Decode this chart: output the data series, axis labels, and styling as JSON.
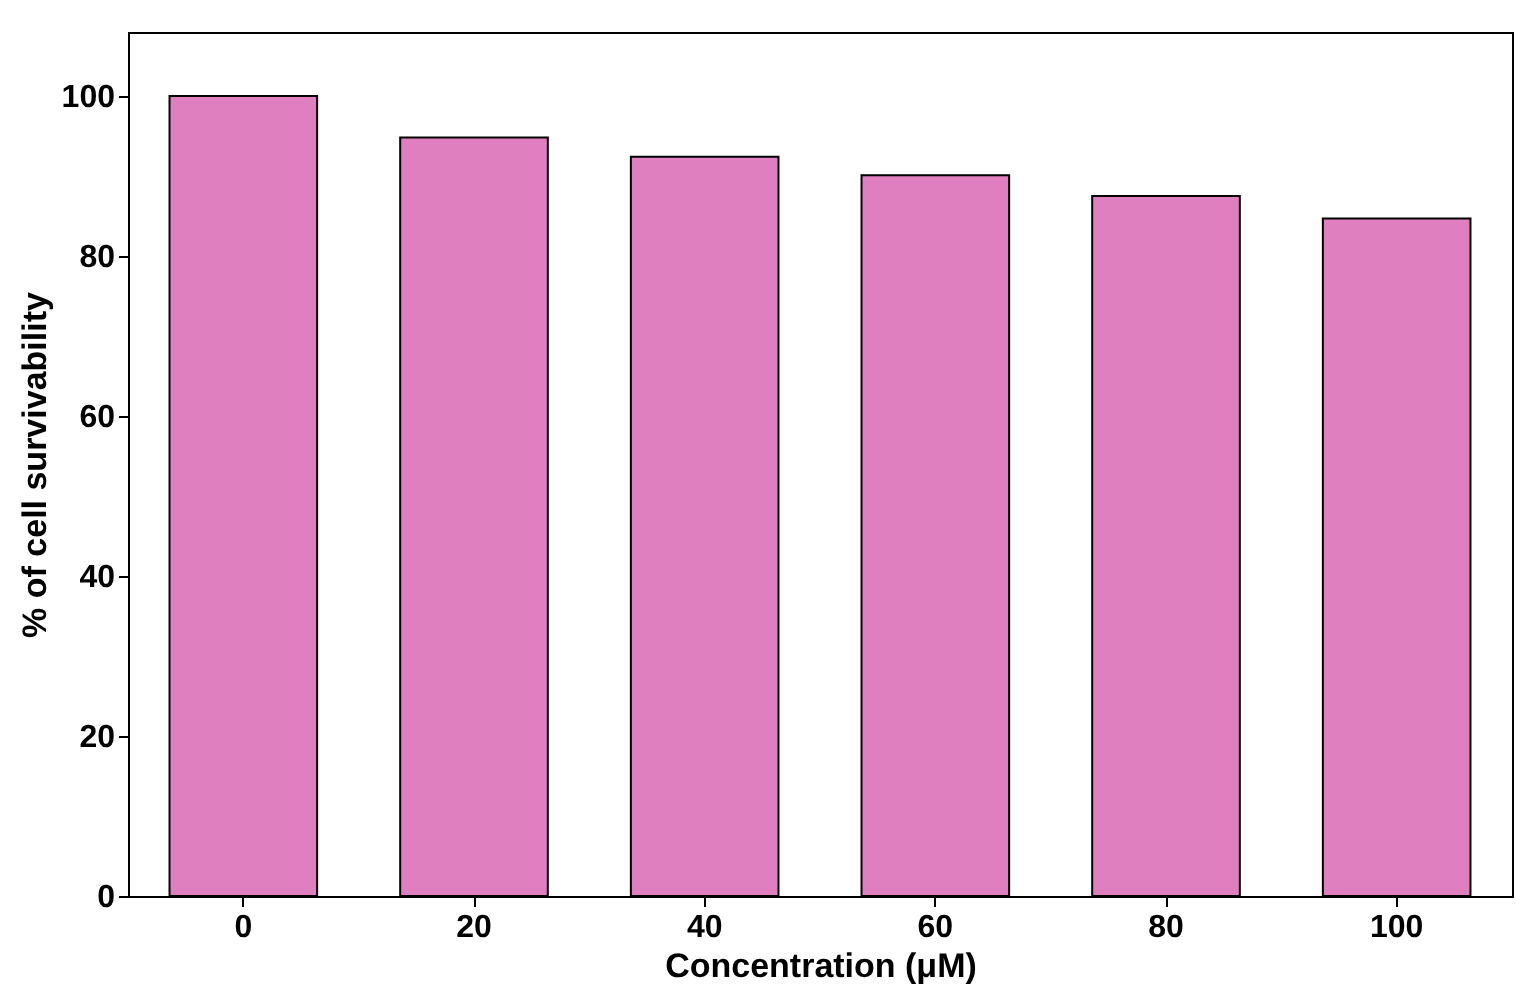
{
  "chart_data": {
    "type": "bar",
    "xlabel": "Concentration (μM)",
    "ylabel": "% of cell survivability",
    "categories": [
      "0",
      "20",
      "40",
      "60",
      "80",
      "100"
    ],
    "values": [
      100,
      94.8,
      92.4,
      90.1,
      87.5,
      84.7
    ],
    "color": "#e07fbf",
    "ylim": [
      0,
      108
    ],
    "yticks": [
      0,
      20,
      40,
      60,
      80,
      100
    ],
    "grid": false
  }
}
